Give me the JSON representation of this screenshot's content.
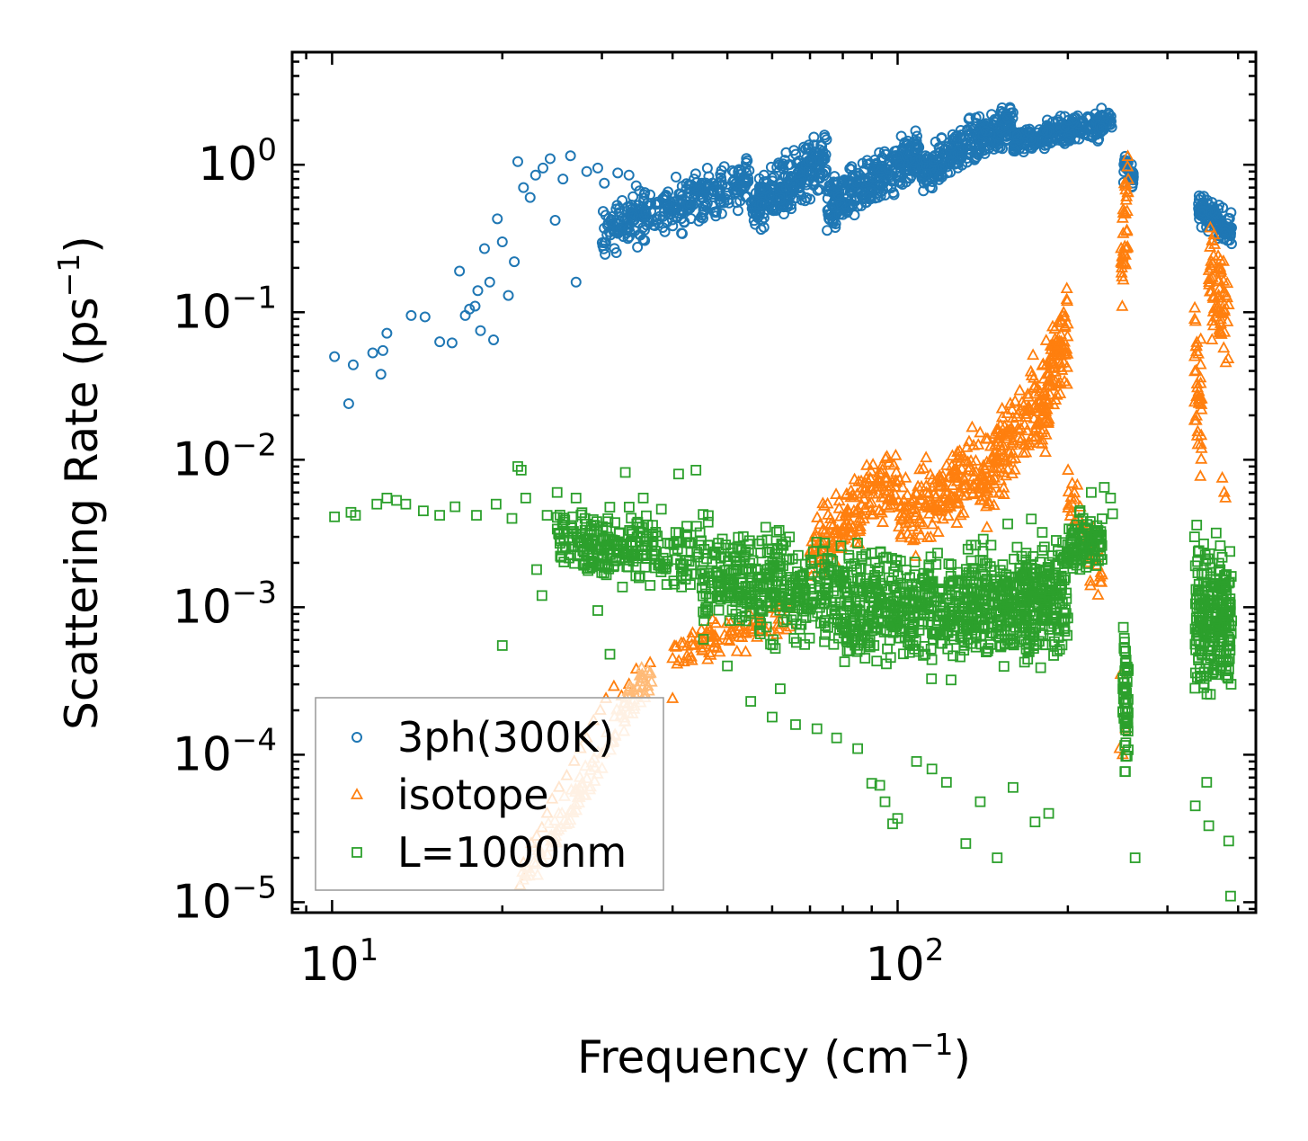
{
  "chart_data": {
    "type": "scatter",
    "title": "",
    "xlabel": "Frequency (cm",
    "xlabel_sup": "−1",
    "xlabel_end": ")",
    "ylabel": "Scattering Rate (ps",
    "ylabel_sup": "−1",
    "ylabel_end": ")",
    "x_scale": "log",
    "y_scale": "log",
    "xlim": [
      8.5,
      430
    ],
    "ylim": [
      8.5e-06,
      5.8
    ],
    "x_ticks": [
      {
        "base": "10",
        "exp": "1",
        "value": 10
      },
      {
        "base": "10",
        "exp": "2",
        "value": 100
      }
    ],
    "y_ticks": [
      {
        "base": "10",
        "exp": "0",
        "value": 1
      },
      {
        "base": "10",
        "exp": "−1",
        "value": 0.1
      },
      {
        "base": "10",
        "exp": "−2",
        "value": 0.01
      },
      {
        "base": "10",
        "exp": "−3",
        "value": 0.001
      },
      {
        "base": "10",
        "exp": "−4",
        "value": 0.0001
      },
      {
        "base": "10",
        "exp": "−5",
        "value": 1e-05
      }
    ],
    "legend_position": "lower-left",
    "series": [
      {
        "name": "3ph(300K)",
        "marker": "circle",
        "color": "#1f77b4",
        "points": [
          [
            10.1,
            0.05
          ],
          [
            10.7,
            0.024
          ],
          [
            10.9,
            0.044
          ],
          [
            11.8,
            0.053
          ],
          [
            12.2,
            0.038
          ],
          [
            12.3,
            0.055
          ],
          [
            12.5,
            0.072
          ],
          [
            13.8,
            0.095
          ],
          [
            14.6,
            0.093
          ],
          [
            15.5,
            0.063
          ],
          [
            16.3,
            0.062
          ],
          [
            16.8,
            0.19
          ],
          [
            17.2,
            0.095
          ],
          [
            17.5,
            0.105
          ],
          [
            17.9,
            0.11
          ],
          [
            18.1,
            0.14
          ],
          [
            18.3,
            0.075
          ],
          [
            18.6,
            0.27
          ],
          [
            19.0,
            0.16
          ],
          [
            19.3,
            0.065
          ],
          [
            19.6,
            0.43
          ],
          [
            20.0,
            0.3
          ],
          [
            20.5,
            0.13
          ],
          [
            21.0,
            0.22
          ],
          [
            21.3,
            1.05
          ],
          [
            21.8,
            0.7
          ],
          [
            22.4,
            0.6
          ],
          [
            22.9,
            0.85
          ],
          [
            23.6,
            0.95
          ],
          [
            24.3,
            1.1
          ],
          [
            24.8,
            0.42
          ],
          [
            25.6,
            0.8
          ],
          [
            26.4,
            1.15
          ],
          [
            27.0,
            0.16
          ],
          [
            28.2,
            0.9
          ],
          [
            29.5,
            0.95
          ],
          [
            30.3,
            0.75
          ],
          [
            32.0,
            0.88
          ],
          [
            33.5,
            0.85
          ],
          [
            34.5,
            0.72
          ]
        ]
      },
      {
        "name": "isotope",
        "marker": "triangle",
        "color": "#ff7f0e",
        "points": [
          [
            21.5,
            1.3e-05
          ],
          [
            21.8,
            1.85e-05
          ],
          [
            22.0,
            1.5e-05
          ],
          [
            22.5,
            2.5e-05
          ],
          [
            23.0,
            2.8e-05
          ],
          [
            23.5,
            3.2e-05
          ],
          [
            24.0,
            4e-05
          ],
          [
            24.5,
            5e-05
          ],
          [
            25.2,
            6e-05
          ],
          [
            26.0,
            7.2e-05
          ],
          [
            26.8,
            9e-05
          ],
          [
            27.5,
            0.00011
          ],
          [
            28.2,
            0.00013
          ],
          [
            29.0,
            0.00017
          ],
          [
            29.8,
            0.0002
          ],
          [
            30.5,
            0.00024
          ],
          [
            31.5,
            0.00029
          ],
          [
            32.5,
            0.00025
          ],
          [
            33.5,
            0.0003
          ],
          [
            34.5,
            0.00038
          ],
          [
            35.5,
            0.00033
          ],
          [
            36.5,
            0.00042
          ],
          [
            40.0,
            0.00024
          ],
          [
            45.0,
            0.0007
          ],
          [
            50.0,
            0.0006
          ],
          [
            52.0,
            0.0005
          ],
          [
            55.0,
            0.0007
          ],
          [
            247.0,
            0.00011
          ],
          [
            248.0,
            0.00035
          ],
          [
            250.0,
            0.0001
          ],
          [
            253.0,
            0.00015
          ],
          [
            375.0,
            0.0075
          ],
          [
            378.0,
            0.006
          ],
          [
            380.0,
            0.0055
          ]
        ]
      },
      {
        "name": "L=1000nm",
        "marker": "square",
        "color": "#2ca02c",
        "points": [
          [
            10.1,
            0.0041
          ],
          [
            10.8,
            0.0044
          ],
          [
            11.0,
            0.0042
          ],
          [
            12.0,
            0.005
          ],
          [
            12.5,
            0.0055
          ],
          [
            13.0,
            0.0053
          ],
          [
            13.5,
            0.005
          ],
          [
            14.5,
            0.0045
          ],
          [
            15.5,
            0.0042
          ],
          [
            16.5,
            0.0048
          ],
          [
            18.0,
            0.0042
          ],
          [
            19.5,
            0.005
          ],
          [
            20.0,
            0.00055
          ],
          [
            20.8,
            0.004
          ],
          [
            21.3,
            0.009
          ],
          [
            21.6,
            0.0085
          ],
          [
            22.0,
            0.0055
          ],
          [
            23.0,
            0.0018
          ],
          [
            23.5,
            0.0012
          ],
          [
            24.0,
            0.0042
          ],
          [
            25.0,
            0.006
          ],
          [
            27.0,
            0.0055
          ],
          [
            29.5,
            0.00095
          ],
          [
            30.0,
            0.0025
          ],
          [
            31.0,
            0.00048
          ],
          [
            33.0,
            0.0082
          ],
          [
            35.5,
            0.0055
          ],
          [
            41.0,
            0.008
          ],
          [
            44.0,
            0.0085
          ],
          [
            50.0,
            0.0004
          ],
          [
            55.0,
            0.00023
          ],
          [
            60.0,
            0.00018
          ],
          [
            62.0,
            0.00028
          ],
          [
            66.0,
            0.00016
          ],
          [
            72.0,
            0.00015
          ],
          [
            78.0,
            0.00013
          ],
          [
            85.0,
            0.00011
          ],
          [
            90.0,
            6.4e-05
          ],
          [
            93.0,
            6.2e-05
          ],
          [
            95.0,
            4.8e-05
          ],
          [
            98.0,
            3.4e-05
          ],
          [
            100.0,
            3.7e-05
          ],
          [
            108.0,
            9e-05
          ],
          [
            115.0,
            8e-05
          ],
          [
            122.0,
            6.5e-05
          ],
          [
            132.0,
            2.5e-05
          ],
          [
            140.0,
            4.8e-05
          ],
          [
            150.0,
            2e-05
          ],
          [
            160.0,
            6e-05
          ],
          [
            175.0,
            3.5e-05
          ],
          [
            185.0,
            4e-05
          ],
          [
            220.0,
            0.006
          ],
          [
            232.0,
            0.0065
          ],
          [
            238.0,
            0.0055
          ],
          [
            240.0,
            0.0043
          ],
          [
            263.0,
            2e-05
          ],
          [
            335.0,
            0.003
          ],
          [
            336.0,
            4.5e-05
          ],
          [
            352.0,
            6.5e-05
          ],
          [
            355.0,
            3.3e-05
          ],
          [
            385.0,
            2.6e-05
          ],
          [
            388.0,
            1.1e-05
          ]
        ]
      }
    ]
  }
}
